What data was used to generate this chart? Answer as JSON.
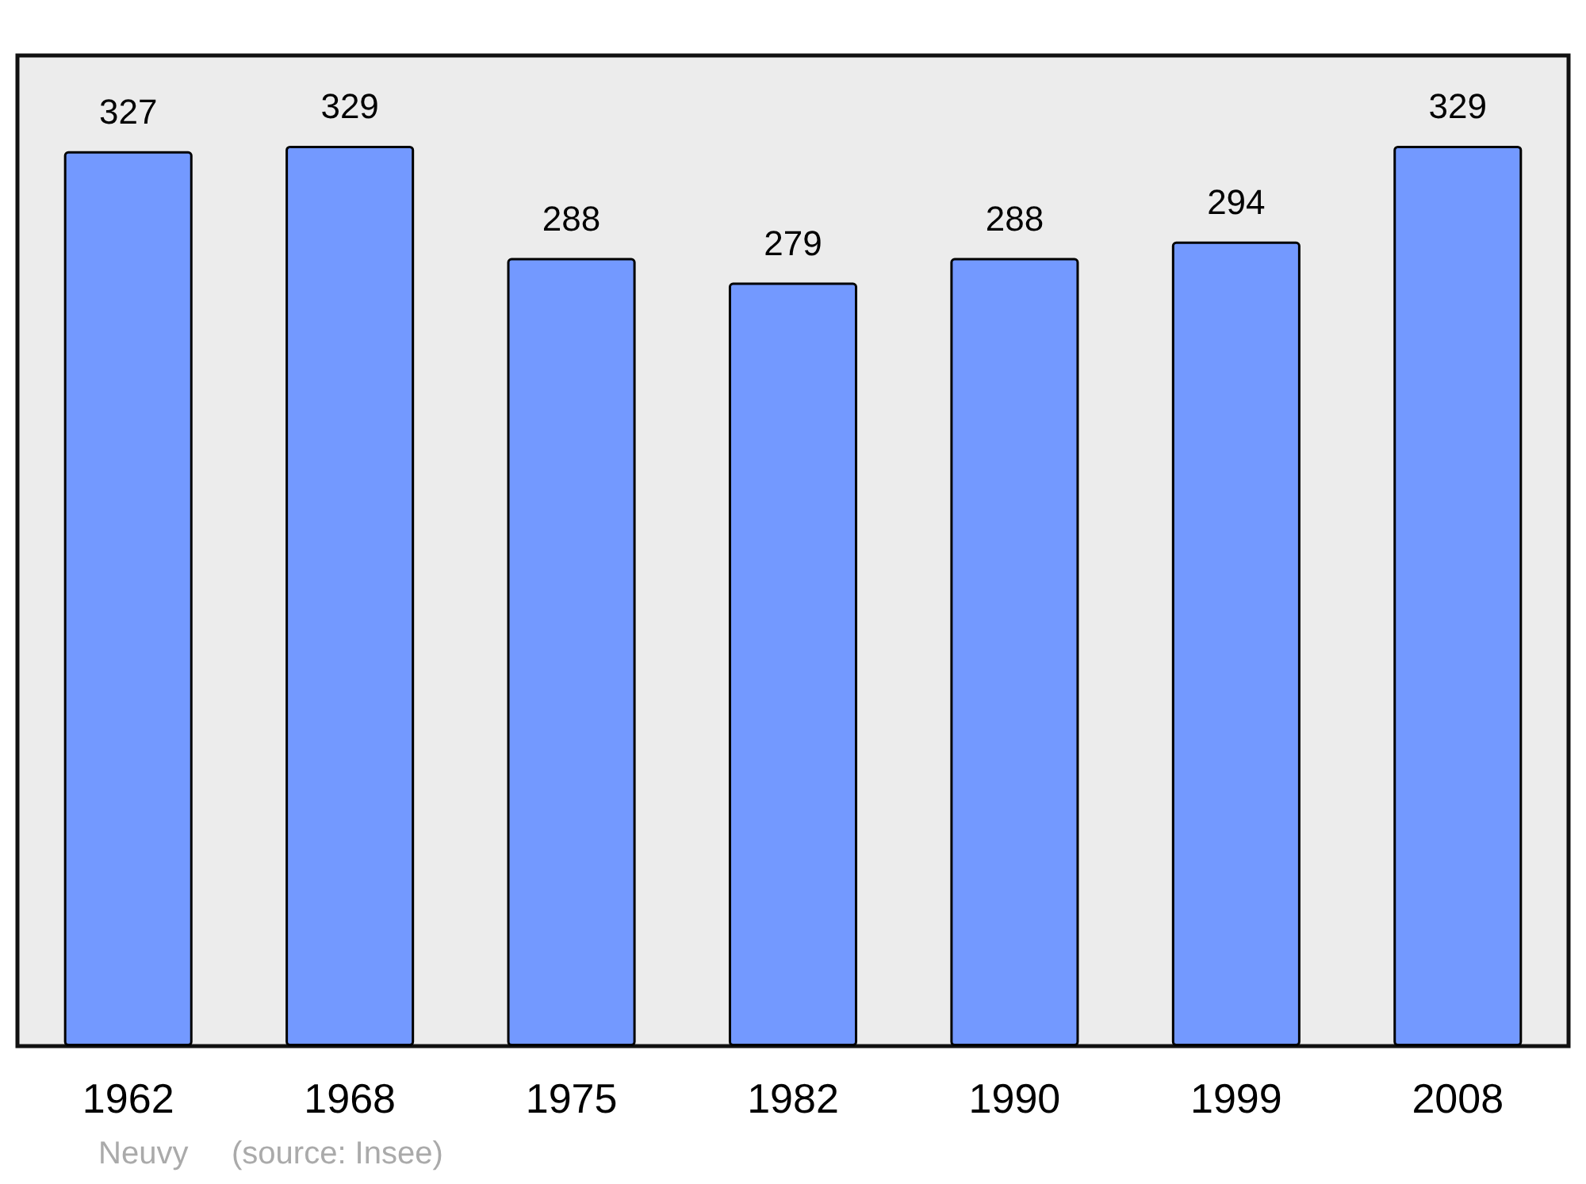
{
  "chart_data": {
    "type": "bar",
    "categories": [
      "1962",
      "1968",
      "1975",
      "1982",
      "1990",
      "1999",
      "2008"
    ],
    "values": [
      327,
      329,
      288,
      279,
      288,
      294,
      329
    ],
    "color": "#7399ff",
    "data_labels": true,
    "ylim": [
      0,
      362
    ],
    "annotations": [
      "Neuvy",
      "(source: Insee)"
    ]
  }
}
